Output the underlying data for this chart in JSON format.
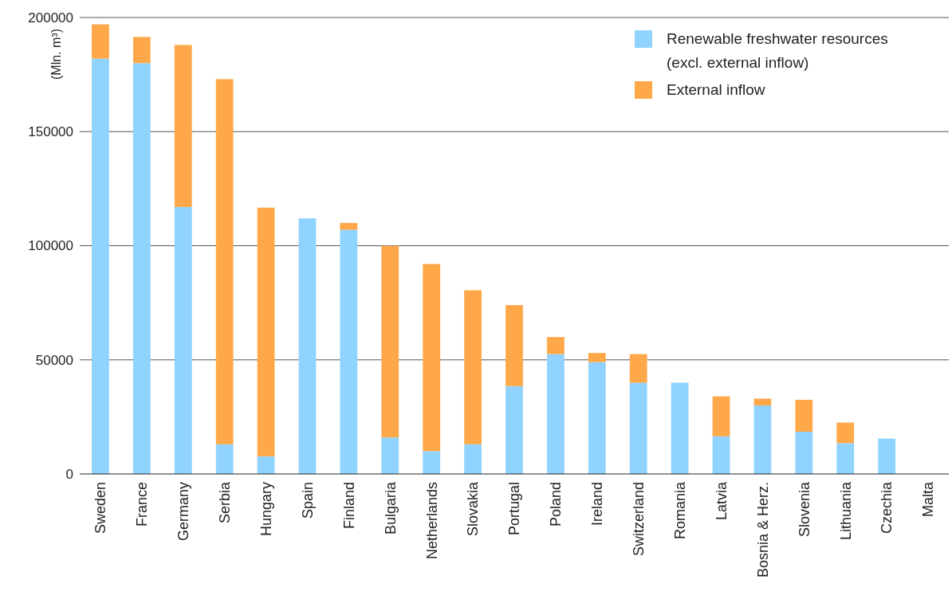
{
  "chart_data": {
    "type": "bar",
    "stacked": true,
    "ylabel": "(Mln. m³)",
    "categories": [
      "Sweden",
      "France",
      "Germany",
      "Serbia",
      "Hungary",
      "Spain",
      "Finland",
      "Bulgaria",
      "Netherlands",
      "Slovakia",
      "Portugal",
      "Poland",
      "Ireland",
      "Switzerland",
      "Romania",
      "Latvia",
      "Bosnia & Herz.",
      "Slovenia",
      "Lithuania",
      "Czechia",
      "Malta"
    ],
    "series": [
      {
        "name": "Renewable freshwater resources (excl. external inflow)",
        "color": "#8fd3fe",
        "values": [
          182000,
          180000,
          117000,
          13000,
          7700,
          112000,
          107000,
          16000,
          10000,
          13000,
          38500,
          52500,
          49000,
          40000,
          40000,
          16500,
          30000,
          18500,
          13500,
          15500,
          0
        ]
      },
      {
        "name": "External inflow",
        "color": "#ffa84a",
        "values": [
          15000,
          11500,
          71000,
          160000,
          109000,
          0,
          3000,
          84000,
          82000,
          67500,
          35500,
          7500,
          4000,
          12500,
          0,
          17500,
          3000,
          14000,
          9000,
          0,
          0
        ]
      }
    ],
    "ylim": [
      0,
      200000
    ],
    "yticks": [
      0,
      50000,
      100000,
      150000,
      200000
    ],
    "grid": "y",
    "legend": "top right"
  }
}
